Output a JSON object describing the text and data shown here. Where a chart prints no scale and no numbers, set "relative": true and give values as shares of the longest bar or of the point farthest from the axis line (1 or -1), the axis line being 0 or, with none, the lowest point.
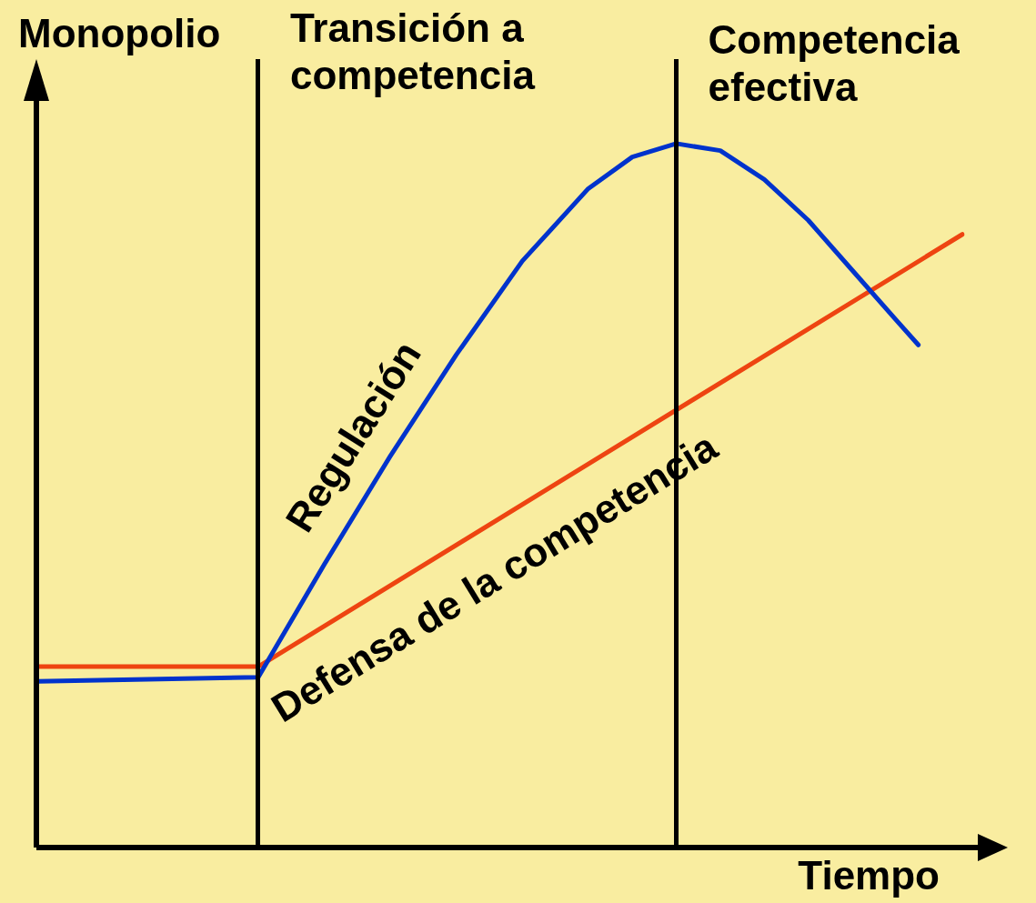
{
  "chart_data": {
    "type": "line",
    "relative": true,
    "xlabel": "Tiempo",
    "marker": "none",
    "line_style": "solid",
    "categories": [
      null,
      null,
      null,
      null,
      null,
      null,
      null,
      null,
      null,
      null,
      null,
      null,
      null,
      null,
      null,
      null,
      null,
      null,
      null,
      null,
      null,
      null,
      null,
      null,
      null,
      null,
      null,
      null,
      null,
      null,
      null,
      null,
      null,
      null,
      null,
      null,
      null,
      null,
      null,
      null,
      null,
      null,
      null
    ],
    "series": [
      {
        "name": "Regulación",
        "color": "#0033cc",
        "values": [
          0.236,
          null,
          null,
          null,
          null,
          null,
          null,
          null,
          null,
          null,
          0.242,
          null,
          null,
          0.402,
          null,
          null,
          0.556,
          null,
          null,
          0.7,
          null,
          null,
          0.833,
          null,
          null,
          0.936,
          null,
          0.981,
          null,
          1.0,
          null,
          0.99,
          null,
          0.949,
          null,
          0.891,
          null,
          0.82,
          null,
          0.749,
          0.714,
          null,
          null
        ]
      },
      {
        "name": "Defensa de la competencia",
        "color": "#ee4411",
        "values": [
          0.257,
          null,
          null,
          null,
          null,
          null,
          null,
          null,
          null,
          null,
          0.257,
          null,
          null,
          null,
          null,
          null,
          null,
          null,
          null,
          null,
          null,
          null,
          null,
          null,
          null,
          null,
          null,
          null,
          null,
          null,
          null,
          null,
          null,
          null,
          null,
          null,
          null,
          null,
          null,
          null,
          null,
          null,
          0.871
        ]
      }
    ],
    "annotations": [
      "Monopolio",
      "Transición a competencia",
      "Competencia efectiva"
    ]
  }
}
